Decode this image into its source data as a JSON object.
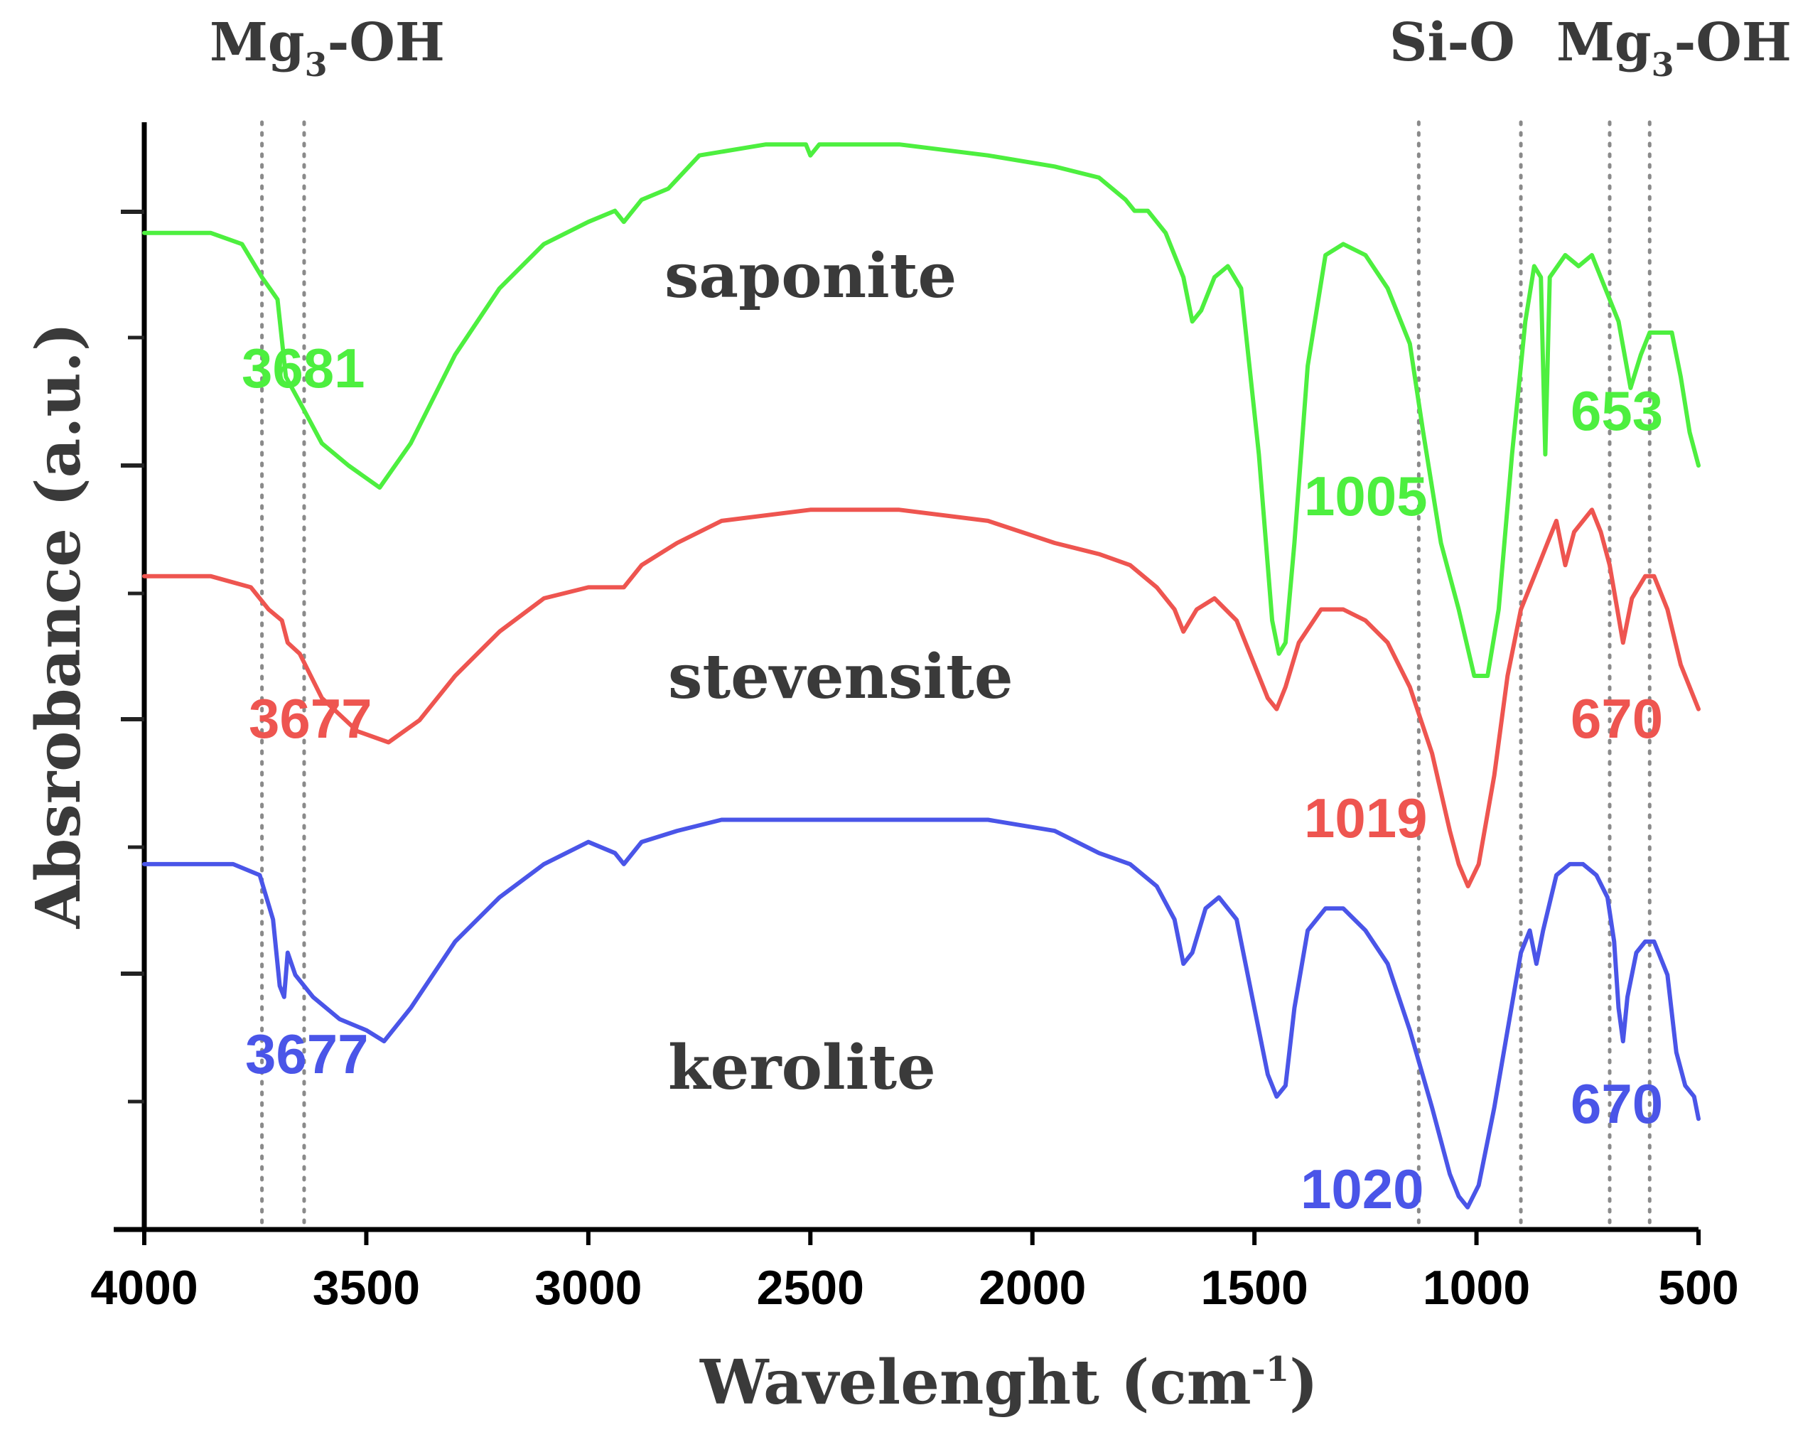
{
  "chart_data": {
    "type": "line",
    "title": "",
    "xlabel": "Wavelenght (cm",
    "xlabel_sup": "-1",
    "xlabel_close": ")",
    "ylabel": "Absrobance (a.u.)",
    "xlim": [
      4000,
      500
    ],
    "x_reversed": true,
    "xticks": [
      "4000",
      "3500",
      "3000",
      "2500",
      "2000",
      "1500",
      "1000",
      "500"
    ],
    "xtick_values": [
      4000,
      3500,
      3000,
      2500,
      2000,
      1500,
      1000,
      500
    ],
    "y_units": "arbitrary (offset stacked traces)",
    "grid": false,
    "reference_lines": [
      3735,
      3640,
      1130,
      900,
      700,
      610
    ],
    "band_labels": [
      {
        "text": "Mg",
        "sub": "3",
        "rest": "-OH",
        "at": 3640
      },
      {
        "text": "Si-O",
        "sub": "",
        "rest": "",
        "at": 1000
      },
      {
        "text": "Mg",
        "sub": "3",
        "rest": "-OH",
        "at": 630
      }
    ],
    "series": [
      {
        "name": "saponite",
        "color": "#4def3f",
        "peaks": [
          "3681",
          "1005",
          "653"
        ],
        "points": [
          [
            4000,
            0.9
          ],
          [
            3850,
            0.9
          ],
          [
            3780,
            0.89
          ],
          [
            3735,
            0.86
          ],
          [
            3700,
            0.84
          ],
          [
            3681,
            0.77
          ],
          [
            3640,
            0.74
          ],
          [
            3600,
            0.71
          ],
          [
            3540,
            0.69
          ],
          [
            3470,
            0.67
          ],
          [
            3400,
            0.71
          ],
          [
            3300,
            0.79
          ],
          [
            3200,
            0.85
          ],
          [
            3100,
            0.89
          ],
          [
            3000,
            0.91
          ],
          [
            2940,
            0.92
          ],
          [
            2920,
            0.91
          ],
          [
            2880,
            0.93
          ],
          [
            2820,
            0.94
          ],
          [
            2750,
            0.97
          ],
          [
            2600,
            0.98
          ],
          [
            2510,
            0.98
          ],
          [
            2500,
            0.97
          ],
          [
            2480,
            0.98
          ],
          [
            2300,
            0.98
          ],
          [
            2100,
            0.97
          ],
          [
            1950,
            0.96
          ],
          [
            1850,
            0.95
          ],
          [
            1790,
            0.93
          ],
          [
            1770,
            0.92
          ],
          [
            1740,
            0.92
          ],
          [
            1700,
            0.9
          ],
          [
            1660,
            0.86
          ],
          [
            1640,
            0.82
          ],
          [
            1620,
            0.83
          ],
          [
            1590,
            0.86
          ],
          [
            1560,
            0.87
          ],
          [
            1530,
            0.85
          ],
          [
            1490,
            0.7
          ],
          [
            1460,
            0.55
          ],
          [
            1445,
            0.52
          ],
          [
            1430,
            0.53
          ],
          [
            1410,
            0.62
          ],
          [
            1380,
            0.78
          ],
          [
            1340,
            0.88
          ],
          [
            1300,
            0.89
          ],
          [
            1250,
            0.88
          ],
          [
            1200,
            0.85
          ],
          [
            1150,
            0.8
          ],
          [
            1120,
            0.72
          ],
          [
            1080,
            0.62
          ],
          [
            1040,
            0.56
          ],
          [
            1005,
            0.5
          ],
          [
            975,
            0.5
          ],
          [
            950,
            0.56
          ],
          [
            920,
            0.7
          ],
          [
            890,
            0.82
          ],
          [
            870,
            0.87
          ],
          [
            855,
            0.86
          ],
          [
            845,
            0.7
          ],
          [
            835,
            0.86
          ],
          [
            800,
            0.88
          ],
          [
            770,
            0.87
          ],
          [
            740,
            0.88
          ],
          [
            700,
            0.84
          ],
          [
            680,
            0.82
          ],
          [
            653,
            0.76
          ],
          [
            630,
            0.79
          ],
          [
            610,
            0.81
          ],
          [
            560,
            0.81
          ],
          [
            540,
            0.77
          ],
          [
            520,
            0.72
          ],
          [
            500,
            0.69
          ]
        ]
      },
      {
        "name": "stevensite",
        "color": "#ee5550",
        "peaks": [
          "3677",
          "1019",
          "670"
        ],
        "points": [
          [
            4000,
            0.59
          ],
          [
            3850,
            0.59
          ],
          [
            3760,
            0.58
          ],
          [
            3720,
            0.56
          ],
          [
            3690,
            0.55
          ],
          [
            3677,
            0.53
          ],
          [
            3650,
            0.52
          ],
          [
            3600,
            0.48
          ],
          [
            3520,
            0.45
          ],
          [
            3450,
            0.44
          ],
          [
            3380,
            0.46
          ],
          [
            3300,
            0.5
          ],
          [
            3200,
            0.54
          ],
          [
            3100,
            0.57
          ],
          [
            3000,
            0.58
          ],
          [
            2940,
            0.58
          ],
          [
            2920,
            0.58
          ],
          [
            2880,
            0.6
          ],
          [
            2800,
            0.62
          ],
          [
            2700,
            0.64
          ],
          [
            2500,
            0.65
          ],
          [
            2300,
            0.65
          ],
          [
            2100,
            0.64
          ],
          [
            1950,
            0.62
          ],
          [
            1850,
            0.61
          ],
          [
            1780,
            0.6
          ],
          [
            1720,
            0.58
          ],
          [
            1680,
            0.56
          ],
          [
            1660,
            0.54
          ],
          [
            1630,
            0.56
          ],
          [
            1590,
            0.57
          ],
          [
            1540,
            0.55
          ],
          [
            1500,
            0.51
          ],
          [
            1470,
            0.48
          ],
          [
            1450,
            0.47
          ],
          [
            1430,
            0.49
          ],
          [
            1400,
            0.53
          ],
          [
            1350,
            0.56
          ],
          [
            1300,
            0.56
          ],
          [
            1250,
            0.55
          ],
          [
            1200,
            0.53
          ],
          [
            1150,
            0.49
          ],
          [
            1100,
            0.43
          ],
          [
            1060,
            0.36
          ],
          [
            1040,
            0.33
          ],
          [
            1019,
            0.31
          ],
          [
            995,
            0.33
          ],
          [
            960,
            0.41
          ],
          [
            930,
            0.5
          ],
          [
            900,
            0.56
          ],
          [
            860,
            0.6
          ],
          [
            840,
            0.62
          ],
          [
            820,
            0.64
          ],
          [
            800,
            0.6
          ],
          [
            780,
            0.63
          ],
          [
            760,
            0.64
          ],
          [
            740,
            0.65
          ],
          [
            720,
            0.63
          ],
          [
            700,
            0.6
          ],
          [
            670,
            0.53
          ],
          [
            650,
            0.57
          ],
          [
            620,
            0.59
          ],
          [
            600,
            0.59
          ],
          [
            570,
            0.56
          ],
          [
            540,
            0.51
          ],
          [
            500,
            0.47
          ]
        ]
      },
      {
        "name": "kerolite",
        "color": "#4a55e8",
        "peaks": [
          "3677",
          "1020",
          "670"
        ],
        "points": [
          [
            4000,
            0.33
          ],
          [
            3800,
            0.33
          ],
          [
            3740,
            0.32
          ],
          [
            3710,
            0.28
          ],
          [
            3695,
            0.22
          ],
          [
            3685,
            0.21
          ],
          [
            3677,
            0.25
          ],
          [
            3660,
            0.23
          ],
          [
            3620,
            0.21
          ],
          [
            3560,
            0.19
          ],
          [
            3500,
            0.18
          ],
          [
            3460,
            0.17
          ],
          [
            3400,
            0.2
          ],
          [
            3300,
            0.26
          ],
          [
            3200,
            0.3
          ],
          [
            3100,
            0.33
          ],
          [
            3000,
            0.35
          ],
          [
            2940,
            0.34
          ],
          [
            2920,
            0.33
          ],
          [
            2880,
            0.35
          ],
          [
            2800,
            0.36
          ],
          [
            2700,
            0.37
          ],
          [
            2500,
            0.37
          ],
          [
            2300,
            0.37
          ],
          [
            2100,
            0.37
          ],
          [
            1950,
            0.36
          ],
          [
            1850,
            0.34
          ],
          [
            1780,
            0.33
          ],
          [
            1720,
            0.31
          ],
          [
            1680,
            0.28
          ],
          [
            1660,
            0.24
          ],
          [
            1640,
            0.25
          ],
          [
            1610,
            0.29
          ],
          [
            1580,
            0.3
          ],
          [
            1540,
            0.28
          ],
          [
            1500,
            0.2
          ],
          [
            1470,
            0.14
          ],
          [
            1450,
            0.12
          ],
          [
            1430,
            0.13
          ],
          [
            1410,
            0.2
          ],
          [
            1380,
            0.27
          ],
          [
            1340,
            0.29
          ],
          [
            1300,
            0.29
          ],
          [
            1250,
            0.27
          ],
          [
            1200,
            0.24
          ],
          [
            1150,
            0.18
          ],
          [
            1100,
            0.11
          ],
          [
            1060,
            0.05
          ],
          [
            1040,
            0.03
          ],
          [
            1020,
            0.02
          ],
          [
            995,
            0.04
          ],
          [
            960,
            0.11
          ],
          [
            930,
            0.18
          ],
          [
            900,
            0.25
          ],
          [
            880,
            0.27
          ],
          [
            865,
            0.24
          ],
          [
            860,
            0.25
          ],
          [
            850,
            0.27
          ],
          [
            820,
            0.32
          ],
          [
            790,
            0.33
          ],
          [
            760,
            0.33
          ],
          [
            730,
            0.32
          ],
          [
            705,
            0.3
          ],
          [
            690,
            0.26
          ],
          [
            680,
            0.2
          ],
          [
            670,
            0.17
          ],
          [
            660,
            0.21
          ],
          [
            640,
            0.25
          ],
          [
            620,
            0.26
          ],
          [
            600,
            0.26
          ],
          [
            570,
            0.23
          ],
          [
            550,
            0.16
          ],
          [
            530,
            0.13
          ],
          [
            510,
            0.12
          ],
          [
            500,
            0.1
          ]
        ]
      }
    ]
  }
}
